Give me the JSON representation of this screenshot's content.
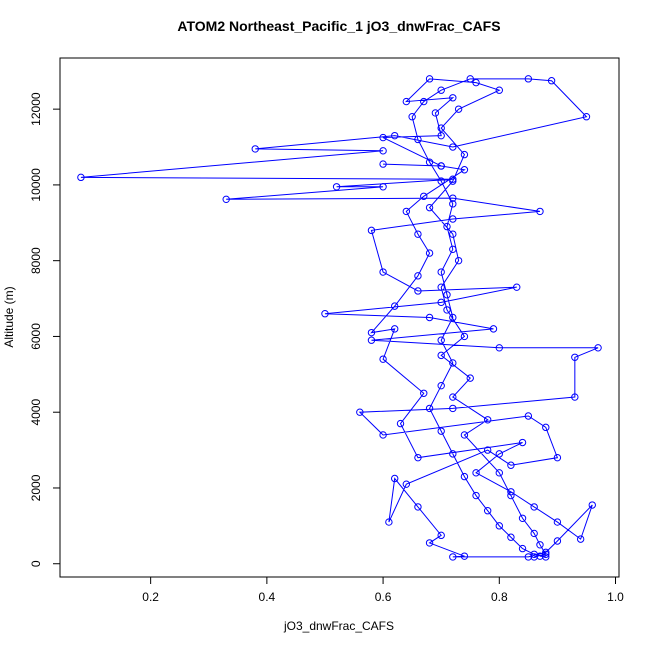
{
  "chart_data": {
    "type": "scatter",
    "title": "ATOM2 Northeast_Pacific_1 jO3_dnwFrac_CAFS",
    "x_label": "jO3_dnwFrac_CAFS",
    "y_label": "Altitude (m)",
    "color": "#0000ff",
    "xlim": [
      0.044,
      1.006
    ],
    "ylim": [
      -350,
      13350
    ],
    "xticks": [
      0.2,
      0.4,
      0.6,
      0.8,
      {
        "value": 1.0,
        "label": "1.0"
      }
    ],
    "yticks": [
      0,
      2000,
      4000,
      6000,
      8000,
      10000,
      12000
    ],
    "x": [
      0.87,
      0.88,
      0.86,
      0.84,
      0.82,
      0.8,
      0.78,
      0.76,
      0.74,
      0.72,
      0.7,
      0.68,
      0.7,
      0.72,
      0.7,
      0.72,
      0.71,
      0.7,
      0.72,
      0.71,
      0.72,
      0.7,
      0.68,
      0.66,
      0.65,
      0.67,
      0.7,
      0.75,
      0.85,
      0.89,
      0.95,
      0.72,
      0.62,
      0.38,
      0.6,
      0.08,
      0.72,
      0.52,
      0.6,
      0.33,
      0.72,
      0.87,
      0.72,
      0.58,
      0.6,
      0.66,
      0.83,
      0.7,
      0.5,
      0.68,
      0.79,
      0.58,
      0.8,
      0.97,
      0.93,
      0.93,
      0.72,
      0.56,
      0.6,
      0.85,
      0.88,
      0.9,
      0.82,
      0.78,
      0.64,
      0.61,
      0.62,
      0.66,
      0.7,
      0.68,
      0.74,
      0.72,
      0.85,
      0.88,
      0.9,
      0.96,
      0.94,
      0.9,
      0.86,
      0.82,
      0.76,
      0.8,
      0.84,
      0.66,
      0.63,
      0.67,
      0.6,
      0.62,
      0.58,
      0.62,
      0.66,
      0.68,
      0.66,
      0.64,
      0.67,
      0.74,
      0.7,
      0.6,
      0.7,
      0.6,
      0.7,
      0.69,
      0.72,
      0.64,
      0.68,
      0.76,
      0.8,
      0.73,
      0.7,
      0.74,
      0.72,
      0.68,
      0.72,
      0.73,
      0.7,
      0.71,
      0.74,
      0.7,
      0.75,
      0.72,
      0.78,
      0.74,
      0.8,
      0.82,
      0.84,
      0.86,
      0.87,
      0.88,
      0.86
    ],
    "values": [
      200,
      180,
      250,
      400,
      700,
      1000,
      1400,
      1800,
      2300,
      2900,
      3500,
      4100,
      4700,
      5300,
      5900,
      6500,
      7100,
      7700,
      8300,
      8900,
      9500,
      10100,
      10600,
      11200,
      11800,
      12200,
      12500,
      12800,
      12800,
      12750,
      11800,
      11000,
      11300,
      10950,
      10900,
      10200,
      10150,
      9950,
      9950,
      9620,
      9650,
      9300,
      9100,
      8800,
      7700,
      7200,
      7300,
      6900,
      6600,
      6500,
      6200,
      5900,
      5700,
      5700,
      5450,
      4400,
      4100,
      4000,
      3400,
      3900,
      3600,
      2800,
      2600,
      3000,
      2100,
      1100,
      2250,
      1500,
      750,
      550,
      200,
      180,
      180,
      300,
      600,
      1550,
      650,
      1100,
      1500,
      1900,
      2400,
      2900,
      3200,
      2800,
      3700,
      4500,
      5400,
      6200,
      6100,
      6800,
      7600,
      8200,
      8700,
      9300,
      9700,
      10400,
      10500,
      10550,
      10500,
      11250,
      11300,
      11900,
      12300,
      12200,
      12800,
      12700,
      12500,
      12000,
      11500,
      10800,
      10100,
      9400,
      8700,
      8000,
      7300,
      6700,
      6000,
      5500,
      4900,
      4400,
      3800,
      3400,
      2400,
      1800,
      1200,
      800,
      500,
      250,
      180
    ]
  }
}
